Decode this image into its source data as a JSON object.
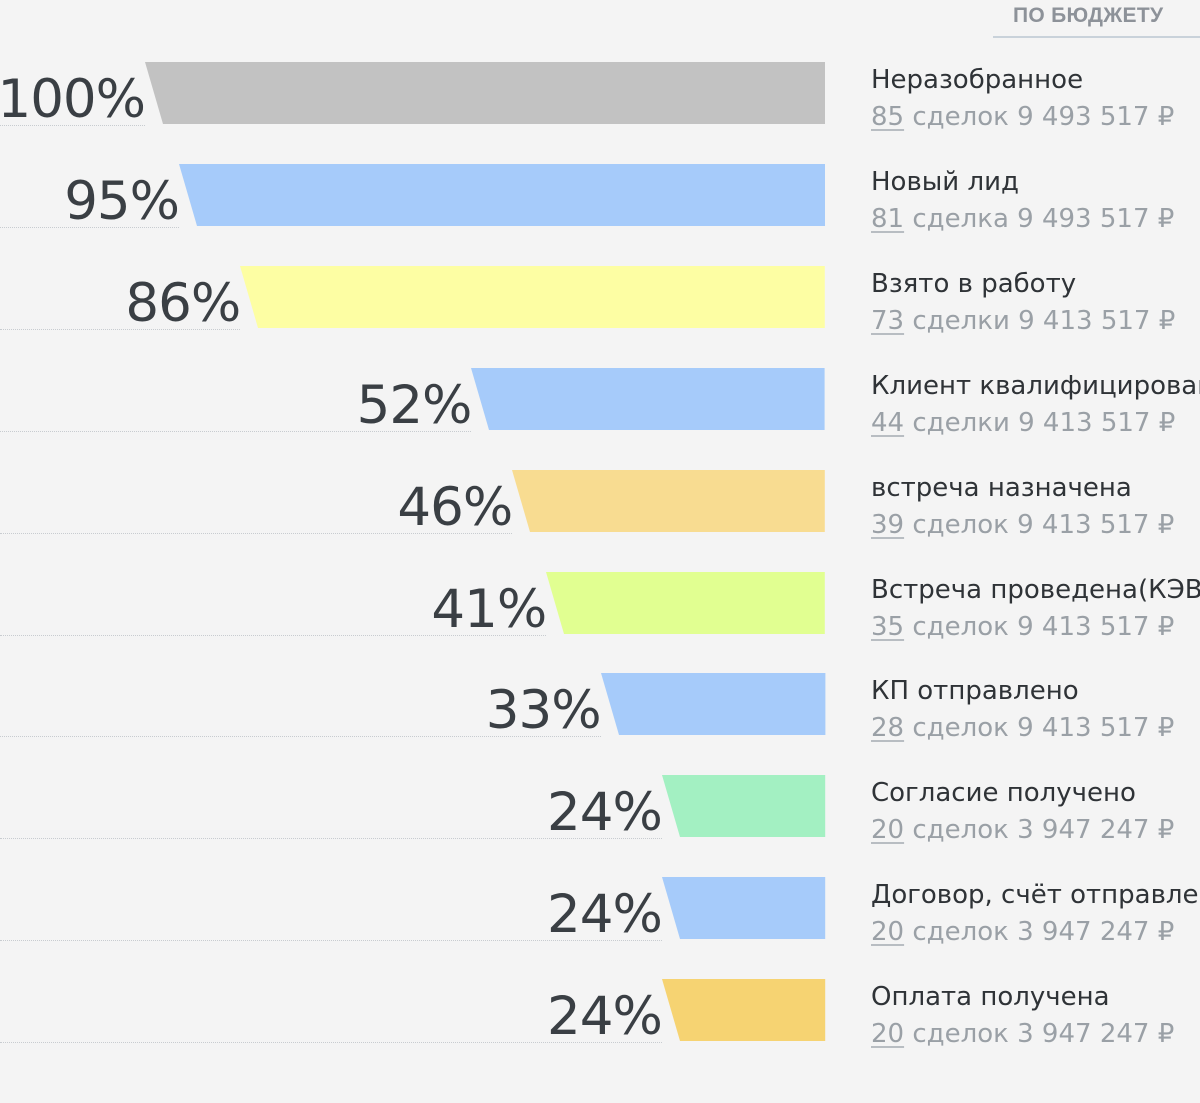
{
  "tab": {
    "label": "ПО БЮДЖЕТУ"
  },
  "chart_data": {
    "type": "bar",
    "subtype": "funnel",
    "orientation": "horizontal",
    "value_unit": "%",
    "stages": [
      {
        "name": "Неразобранное",
        "percent": 100,
        "percent_label": "100%",
        "count": "85",
        "count_word": "сделок",
        "sum": "9 493 517 ₽",
        "color": "#c2c2c2"
      },
      {
        "name": "Новый лид",
        "percent": 95,
        "percent_label": "95%",
        "count": "81",
        "count_word": "сделка",
        "sum": "9 493 517 ₽",
        "color": "#a6cbfa"
      },
      {
        "name": "Взято в работу",
        "percent": 86,
        "percent_label": "86%",
        "count": "73",
        "count_word": "сделки",
        "sum": "9 413 517 ₽",
        "color": "#fdfea3"
      },
      {
        "name": "Клиент квалифицирован",
        "percent": 52,
        "percent_label": "52%",
        "count": "44",
        "count_word": "сделки",
        "sum": "9 413 517 ₽",
        "color": "#a6cbfa"
      },
      {
        "name": "встреча назначена",
        "percent": 46,
        "percent_label": "46%",
        "count": "39",
        "count_word": "сделок",
        "sum": "9 413 517 ₽",
        "color": "#f8dc91"
      },
      {
        "name": "Встреча проведена(КЭВ)",
        "percent": 41,
        "percent_label": "41%",
        "count": "35",
        "count_word": "сделок",
        "sum": "9 413 517 ₽",
        "color": "#e1ff91"
      },
      {
        "name": "КП отправлено",
        "percent": 33,
        "percent_label": "33%",
        "count": "28",
        "count_word": "сделок",
        "sum": "9 413 517 ₽",
        "color": "#a6cbfa"
      },
      {
        "name": "Согласие получено",
        "percent": 24,
        "percent_label": "24%",
        "count": "20",
        "count_word": "сделок",
        "sum": "3 947 247 ₽",
        "color": "#a3f0c2"
      },
      {
        "name": "Договор, счёт отправлен",
        "percent": 24,
        "percent_label": "24%",
        "count": "20",
        "count_word": "сделок",
        "sum": "3 947 247 ₽",
        "color": "#a6cbfa"
      },
      {
        "name": "Оплата получена",
        "percent": 24,
        "percent_label": "24%",
        "count": "20",
        "count_word": "сделок",
        "sum": "3 947 247 ₽",
        "color": "#f6d372"
      }
    ]
  }
}
